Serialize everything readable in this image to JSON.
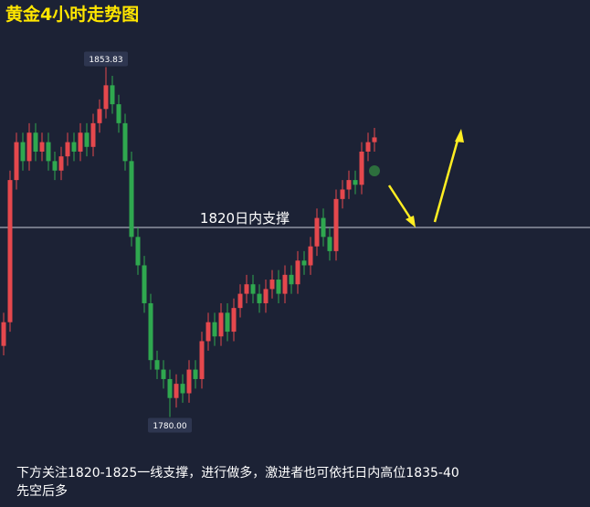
{
  "chart_data": {
    "type": "candlestick",
    "title": "黄金4小时走势图",
    "note": "下方关注1820-1825一线支撑，进行做多，激进者也可依托日内高位1835-40先空后多",
    "ylim": [
      1761,
      1868
    ],
    "up_color": "#e5484d",
    "down_color": "#2fa84f",
    "open": [
      1795,
      1800,
      1830,
      1838,
      1834,
      1840,
      1836,
      1838,
      1834,
      1832,
      1835,
      1838,
      1836,
      1840,
      1837,
      1842,
      1845,
      1850,
      1846,
      1842,
      1834,
      1818,
      1812,
      1804,
      1792,
      1790,
      1788,
      1784,
      1787,
      1785,
      1790,
      1788,
      1796,
      1800,
      1797,
      1802,
      1798,
      1803,
      1806,
      1808,
      1806,
      1804,
      1807,
      1809,
      1806,
      1810,
      1808,
      1813,
      1812,
      1816,
      1822,
      1818,
      1815,
      1826,
      1828,
      1830,
      1829,
      1836,
      1838
    ],
    "high": [
      1802,
      1832,
      1840,
      1840,
      1842,
      1842,
      1840,
      1840,
      1836,
      1837,
      1840,
      1840,
      1842,
      1842,
      1844,
      1847,
      1853.83,
      1852,
      1848,
      1844,
      1836,
      1820,
      1814,
      1806,
      1794,
      1792,
      1790,
      1789,
      1789,
      1792,
      1792,
      1798,
      1802,
      1802,
      1804,
      1804,
      1805,
      1808,
      1810,
      1810,
      1808,
      1809,
      1811,
      1811,
      1812,
      1812,
      1815,
      1815,
      1818,
      1824,
      1824,
      1820,
      1828,
      1830,
      1832,
      1832,
      1838,
      1840,
      1841
    ],
    "low": [
      1793,
      1798,
      1828,
      1832,
      1832,
      1834,
      1834,
      1832,
      1830,
      1830,
      1833,
      1834,
      1834,
      1835,
      1835,
      1840,
      1843,
      1844,
      1840,
      1832,
      1816,
      1810,
      1802,
      1790,
      1788,
      1786,
      1780,
      1782,
      1783,
      1783,
      1786,
      1786,
      1794,
      1795,
      1795,
      1796,
      1796,
      1801,
      1804,
      1804,
      1802,
      1802,
      1805,
      1804,
      1804,
      1806,
      1806,
      1810,
      1810,
      1814,
      1816,
      1813,
      1813,
      1824,
      1826,
      1827,
      1827,
      1834,
      1836
    ],
    "close": [
      1800,
      1830,
      1838,
      1834,
      1840,
      1836,
      1838,
      1834,
      1832,
      1835,
      1838,
      1836,
      1840,
      1837,
      1842,
      1845,
      1850,
      1846,
      1842,
      1834,
      1818,
      1812,
      1804,
      1792,
      1790,
      1788,
      1784,
      1787,
      1785,
      1790,
      1788,
      1796,
      1800,
      1797,
      1802,
      1798,
      1803,
      1806,
      1808,
      1806,
      1804,
      1807,
      1809,
      1806,
      1810,
      1808,
      1813,
      1812,
      1816,
      1822,
      1818,
      1815,
      1826,
      1828,
      1830,
      1829,
      1836,
      1838,
      1839
    ],
    "annotations": [
      {
        "index": 16,
        "value": 1853.83,
        "label": "1853.83"
      },
      {
        "index": 26,
        "value": 1780,
        "label": "1780.00"
      }
    ],
    "support": {
      "value": 1820,
      "label": "1820日内支撑"
    }
  }
}
